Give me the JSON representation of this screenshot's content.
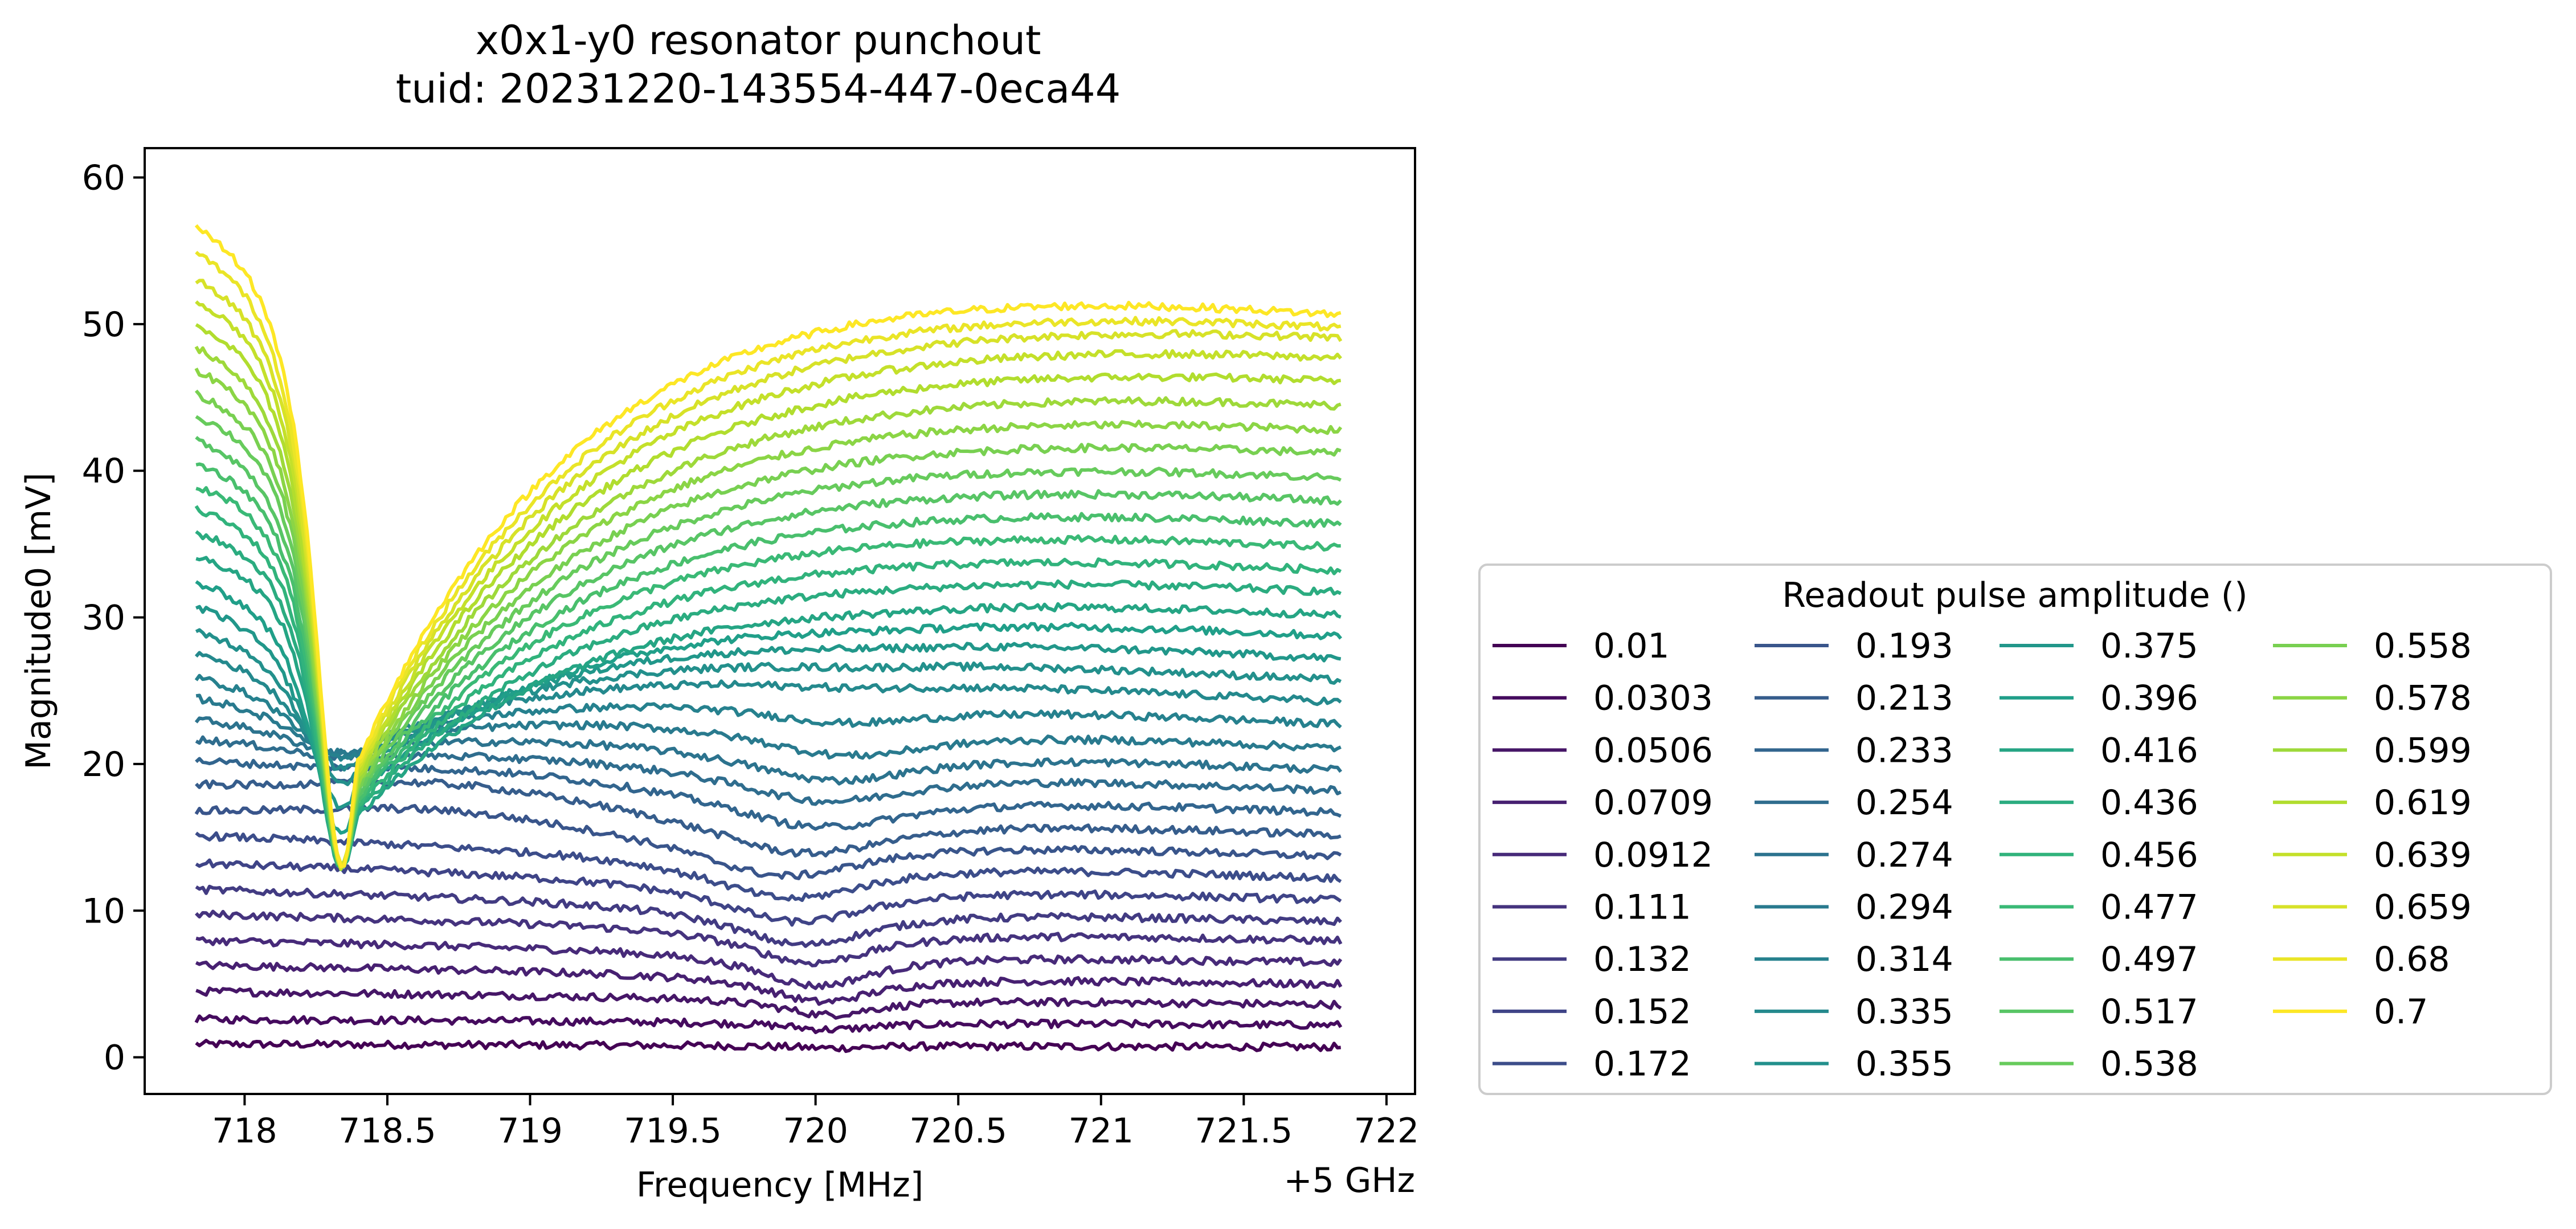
{
  "chart_data": {
    "type": "line",
    "title_lines": [
      "x0x1-y0 resonator punchout",
      "tuid: 20231220-143554-447-0eca44"
    ],
    "xlabel": "Frequency [MHz]",
    "x_offset_label": "+5 GHz",
    "ylabel": "Magnitude0 [mV]",
    "xlim": [
      717.65,
      722.1
    ],
    "ylim": [
      -2.5,
      62
    ],
    "x_ticks": [
      718,
      718.5,
      719,
      719.5,
      720,
      720.5,
      721,
      721.5,
      722
    ],
    "x_tick_labels": [
      "718",
      "718.5",
      "719",
      "719.5",
      "720",
      "720.5",
      "721",
      "721.5",
      "722"
    ],
    "y_ticks": [
      0,
      10,
      20,
      30,
      40,
      50,
      60
    ],
    "y_tick_labels": [
      "0",
      "10",
      "20",
      "30",
      "40",
      "50",
      "60"
    ],
    "grid": false,
    "legend": {
      "title": "Readout pulse amplitude ()",
      "placement": "outside-right-bottom",
      "columns": 4,
      "entries": [
        "0.01",
        "0.0303",
        "0.0506",
        "0.0709",
        "0.0912",
        "0.111",
        "0.132",
        "0.152",
        "0.172",
        "0.193",
        "0.213",
        "0.233",
        "0.254",
        "0.274",
        "0.294",
        "0.314",
        "0.335",
        "0.355",
        "0.375",
        "0.396",
        "0.416",
        "0.436",
        "0.456",
        "0.477",
        "0.497",
        "0.517",
        "0.538",
        "0.558",
        "0.578",
        "0.599",
        "0.619",
        "0.639",
        "0.659",
        "0.68",
        "0.7"
      ]
    },
    "colormap": "viridis",
    "colormap_stops": [
      "#440154",
      "#482878",
      "#3e4989",
      "#31688e",
      "#26828e",
      "#1f9e89",
      "#35b779",
      "#6ece58",
      "#b5de2b",
      "#fde725"
    ],
    "x_range": [
      717.83,
      721.84
    ],
    "series_shape": {
      "baseline_start": [
        0.9,
        2.6,
        4.5,
        6.3,
        8.0,
        9.8,
        11.5,
        13.3,
        15.2,
        16.8,
        18.6,
        20.3,
        22.0,
        23.6,
        25.3,
        26.9,
        28.7,
        30.3,
        32.0,
        33.6,
        35.3,
        37.0,
        38.7,
        40.4,
        42.0,
        43.7,
        45.4,
        47.0,
        48.7,
        50.3,
        52.0,
        53.7,
        55.2,
        57.1,
        58.9
      ],
      "baseline_end": [
        0.7,
        2.2,
        3.6,
        5.0,
        6.5,
        8.0,
        9.3,
        10.8,
        12.3,
        13.8,
        15.3,
        16.8,
        18.3,
        19.7,
        21.2,
        22.8,
        24.3,
        25.8,
        27.3,
        28.9,
        30.4,
        32.0,
        33.5,
        35.1,
        36.7,
        38.3,
        39.9,
        41.6,
        43.2,
        44.9,
        46.6,
        48.2,
        49.6,
        50.3,
        51.2
      ],
      "dip_center_mhz": [
        720.05,
        720.05,
        720.04,
        720.02,
        720.0,
        719.98,
        719.95,
        719.93,
        719.9,
        719.88,
        719.95,
        720.0,
        720.02,
        720.05,
        720.1,
        720.1,
        720.12,
        720.15,
        720.15,
        720.2,
        720.2,
        720.2,
        720.2,
        720.2,
        720.2,
        720.2,
        720.2,
        720.2,
        720.2,
        720.2,
        720.2,
        720.2,
        720.2,
        720.2,
        720.2
      ],
      "dip_minimum_mv": [
        0.5,
        1.5,
        2.0,
        2.3,
        3.0,
        4.5,
        5.5,
        7.0,
        8.5,
        10.0,
        11.5,
        13.5,
        15.5,
        17.0,
        19.0,
        22.0,
        24.0,
        26.0,
        27.5,
        29.0,
        31.0,
        33.0,
        35.0,
        37.0,
        39.0,
        41.0,
        43.0,
        45.0,
        47.0,
        49.0,
        51.0,
        52.5,
        54.0,
        55.0,
        56.0
      ],
      "low_power_dip_center_mhz": 720.05,
      "high_power_dip_center_mhz": 718.34,
      "high_power_dip_minimum_mv": 13.0,
      "intermediate_plateau_mv": 20.0
    }
  }
}
